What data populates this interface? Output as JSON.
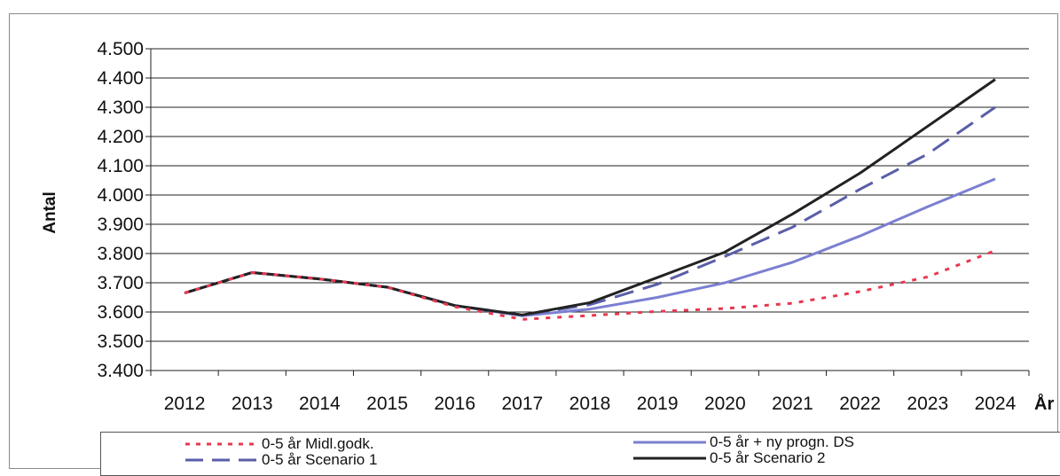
{
  "chart_data": {
    "type": "line",
    "ylabel": "Antal",
    "xlabel": "År",
    "categories": [
      "2012",
      "2013",
      "2014",
      "2015",
      "2016",
      "2017",
      "2018",
      "2019",
      "2020",
      "2021",
      "2022",
      "2023",
      "2024"
    ],
    "ylim": [
      3400,
      4500
    ],
    "yticks": [
      3400,
      3500,
      3600,
      3700,
      3800,
      3900,
      4000,
      4100,
      4200,
      4300,
      4400,
      4500
    ],
    "ytick_labels": [
      "3.400",
      "3.500",
      "3.600",
      "3.700",
      "3.800",
      "3.900",
      "4.000",
      "4.100",
      "4.200",
      "4.300",
      "4.400",
      "4.500"
    ],
    "grid": true,
    "legend_position": "bottom",
    "series": [
      {
        "name": "0-5 år Midl.godk.",
        "style": "dotted",
        "color": "#e8384f",
        "values": [
          3665,
          3735,
          3713,
          3685,
          3618,
          3575,
          3588,
          3602,
          3612,
          3630,
          3670,
          3720,
          3810
        ]
      },
      {
        "name": "0-5 år + ny progn. DS",
        "style": "solid",
        "color": "#7b7fd1",
        "values": [
          3665,
          3735,
          3713,
          3685,
          3622,
          3587,
          3610,
          3650,
          3700,
          3770,
          3860,
          3960,
          4055
        ]
      },
      {
        "name": "0-5 år Scenario 1",
        "style": "dashed",
        "color": "#5a5ea8",
        "values": [
          3665,
          3735,
          3713,
          3685,
          3622,
          3590,
          3625,
          3695,
          3790,
          3890,
          4020,
          4140,
          4300
        ]
      },
      {
        "name": "0-5 år Scenario 2",
        "style": "solid",
        "color": "#222222",
        "values": [
          3665,
          3735,
          3713,
          3685,
          3622,
          3590,
          3632,
          3718,
          3805,
          3935,
          4075,
          4235,
          4395
        ]
      }
    ]
  }
}
